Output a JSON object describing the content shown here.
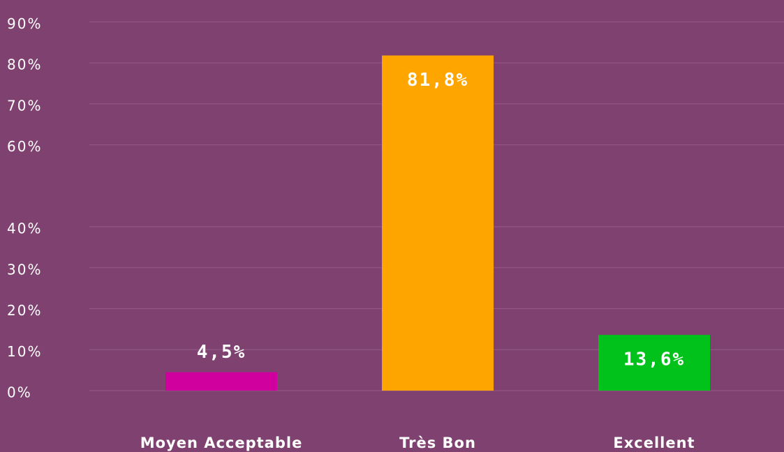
{
  "chart_data": {
    "type": "bar",
    "categories": [
      "Moyen Acceptable",
      "Très Bon",
      "Excellent"
    ],
    "values": [
      4.5,
      81.8,
      13.6
    ],
    "value_labels": [
      "4,5%",
      "81,8%",
      "13,6%"
    ],
    "colors": [
      "#d0009e",
      "#ffa500",
      "#00c21a"
    ],
    "ylim": [
      0,
      95
    ],
    "yticks": [
      {
        "value": 0,
        "label": "0%"
      },
      {
        "value": 10,
        "label": "10%"
      },
      {
        "value": 20,
        "label": "20%"
      },
      {
        "value": 30,
        "label": "30%"
      },
      {
        "value": 40,
        "label": "40%"
      },
      {
        "value": 60,
        "label": "60%"
      },
      {
        "value": 70,
        "label": "70%"
      },
      {
        "value": 80,
        "label": "80%"
      },
      {
        "value": 90,
        "label": "90%"
      }
    ],
    "grid": true
  }
}
